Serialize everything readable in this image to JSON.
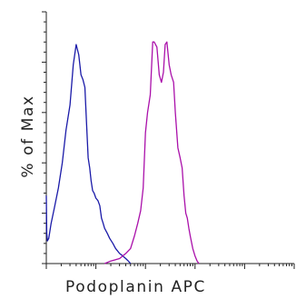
{
  "chart_data": {
    "type": "line",
    "title": "",
    "xlabel": "Podoplanin APC",
    "ylabel": "% of Max",
    "xscale": "log",
    "xlim": [
      1,
      100000
    ],
    "ylim": [
      0,
      100
    ],
    "grid": false,
    "legend": "none",
    "series": [
      {
        "color": "#1a1aa8",
        "x": [
          1.0,
          1.02,
          1.05,
          1.12,
          1.25,
          1.45,
          1.75,
          2.1,
          2.5,
          3.0,
          3.5,
          4.0,
          4.5,
          5.0,
          5.5,
          6.0,
          6.5,
          7.0,
          7.5,
          8.0,
          8.6,
          9.2,
          10,
          11,
          12,
          13,
          14,
          15,
          17,
          19,
          22,
          25,
          30,
          35,
          40,
          45,
          50
        ],
        "y": [
          27,
          12,
          9,
          10,
          16,
          22,
          30,
          40,
          53,
          63,
          79,
          87,
          83,
          75,
          73,
          70,
          55,
          42,
          38,
          33,
          29,
          28,
          26,
          25,
          23,
          18,
          16,
          14,
          12,
          10,
          8,
          6,
          4,
          3,
          2,
          1,
          0
        ]
      },
      {
        "color": "#aa10aa",
        "x": [
          15,
          20,
          30,
          40,
          50,
          60,
          70,
          80,
          90,
          100,
          110,
          125,
          140,
          150,
          170,
          190,
          210,
          230,
          250,
          270,
          300,
          330,
          370,
          400,
          450,
          500,
          550,
          600,
          650,
          700,
          750,
          800,
          900,
          1000,
          1100,
          1200
        ],
        "y": [
          0,
          1,
          2,
          4,
          6,
          11,
          16,
          21,
          30,
          52,
          60,
          67,
          88,
          88,
          86,
          75,
          72,
          76,
          87,
          88,
          79,
          75,
          72,
          60,
          46,
          42,
          38,
          27,
          20,
          18,
          14,
          11,
          6,
          3,
          1,
          0
        ]
      }
    ]
  }
}
